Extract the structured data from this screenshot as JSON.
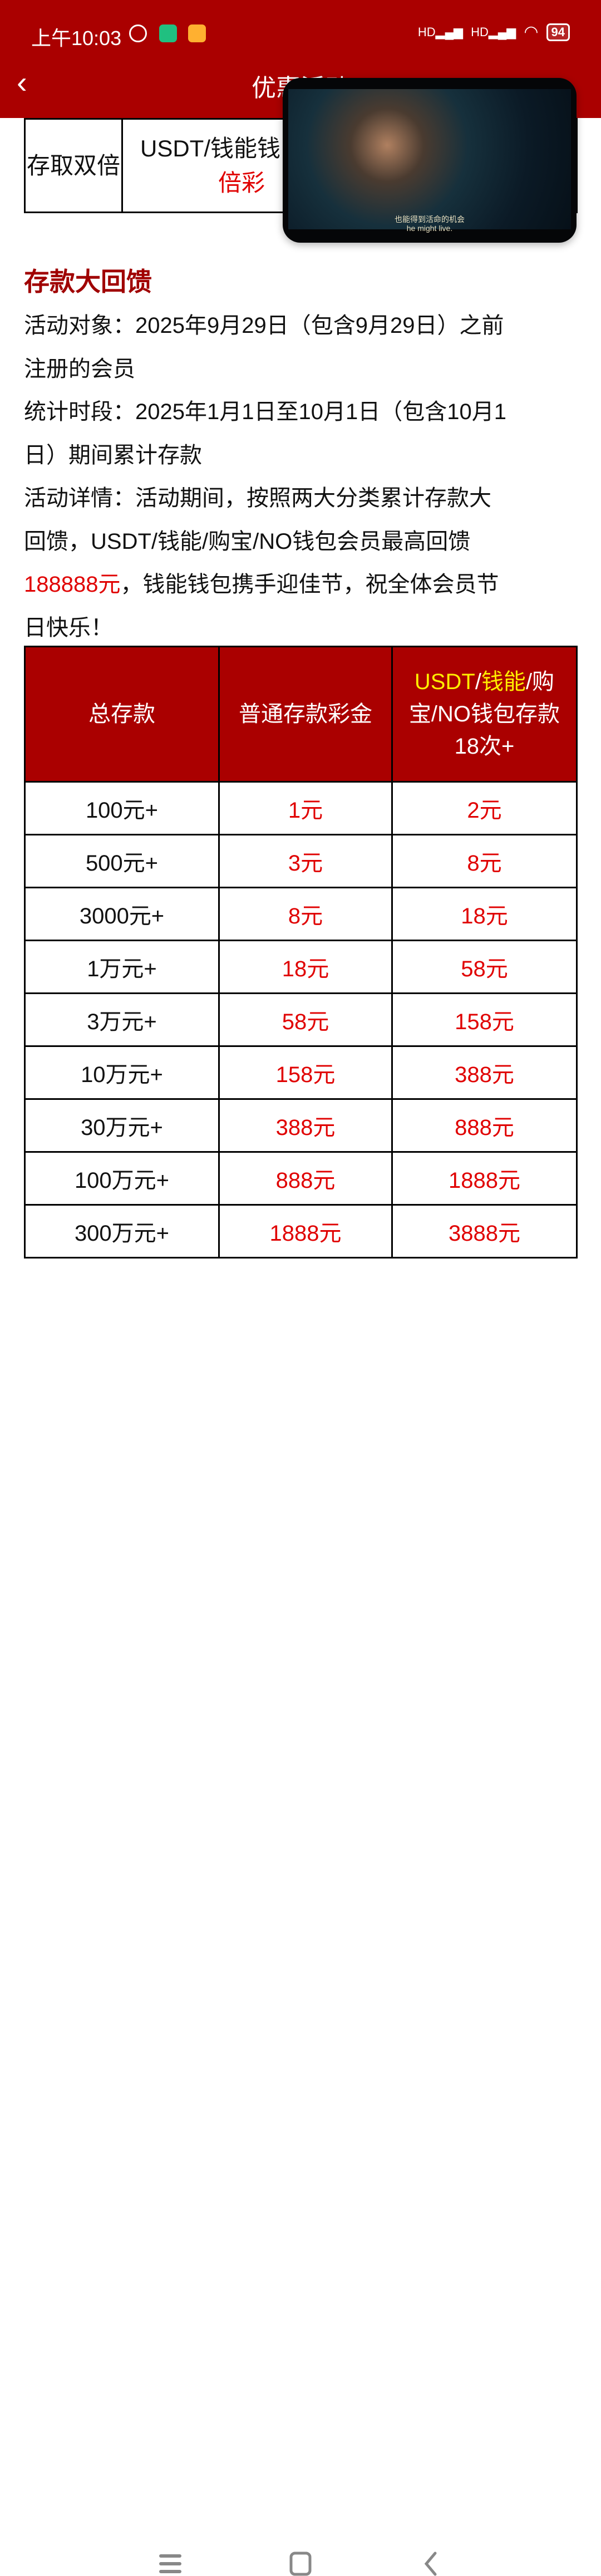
{
  "status_bar": {
    "time": "上午10:03",
    "battery": "94",
    "signal_labels": [
      "HD",
      "HD"
    ]
  },
  "header": {
    "title": "优惠活动",
    "back_icon": "chevron-left-icon"
  },
  "top_table": {
    "label": "存取双倍",
    "content_line1": "USDT/钱能钱",
    "content_line2": "倍彩"
  },
  "video_overlay": {
    "subtitle_cn": "也能得到活命的机会",
    "subtitle_en": "he might live."
  },
  "section": {
    "heading": "存款大回馈",
    "lines": [
      "活动对象：2025年9月29日（包含9月29日）之前",
      "注册的会员",
      "统计时段：2025年1月1日至10月1日（包含10月1",
      "日）期间累计存款",
      "活动详情：活动期间，按照两大分类累计存款大",
      "回馈，USDT/钱能/购宝/NO钱包会员最高回馈"
    ],
    "highlight": "188888元",
    "line7_rest": "，钱能钱包携手迎佳节，祝全体会员节",
    "line8": "日快乐！"
  },
  "table": {
    "headers": {
      "col1": "总存款",
      "col2": "普通存款彩金",
      "col3_yellow1": "USDT",
      "col3_sep1": "/",
      "col3_yellow2": "钱能",
      "col3_rest": "/购宝/NO钱包存款18次+"
    },
    "rows": [
      {
        "total": "100元+",
        "normal": "1元",
        "wallet": "2元"
      },
      {
        "total": "500元+",
        "normal": "3元",
        "wallet": "8元"
      },
      {
        "total": "3000元+",
        "normal": "8元",
        "wallet": "18元"
      },
      {
        "total": "1万元+",
        "normal": "18元",
        "wallet": "58元"
      },
      {
        "total": "3万元+",
        "normal": "58元",
        "wallet": "158元"
      },
      {
        "total": "10万元+",
        "normal": "158元",
        "wallet": "388元"
      },
      {
        "total": "30万元+",
        "normal": "388元",
        "wallet": "888元"
      },
      {
        "total": "100万元+",
        "normal": "888元",
        "wallet": "1888元"
      },
      {
        "total": "300万元+",
        "normal": "1888元",
        "wallet": "3888元"
      }
    ]
  },
  "colors": {
    "brand": "#aa0000",
    "value_red": "#e00000",
    "highlight_yellow": "#ffee00"
  }
}
